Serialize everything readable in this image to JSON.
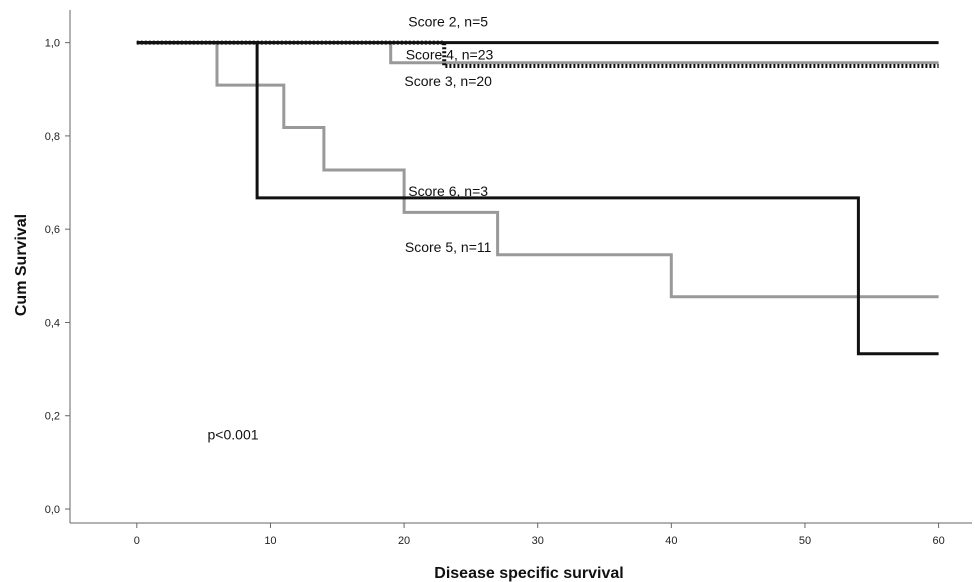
{
  "chart_data": {
    "type": "line",
    "subtype": "step",
    "title": "",
    "xlabel": "Disease specific survival",
    "ylabel": "Cum Survival",
    "xlim": [
      -5,
      62.5
    ],
    "ylim": [
      -0.03,
      1.07
    ],
    "xticks": [
      0,
      10,
      20,
      30,
      40,
      50,
      60
    ],
    "yticks": [
      0.0,
      0.2,
      0.4,
      0.6,
      0.8,
      1.0
    ],
    "xtick_labels": [
      "0",
      "10",
      "20",
      "30",
      "40",
      "50",
      "60"
    ],
    "ytick_labels": [
      "0,0",
      "0,2",
      "0,4",
      "0,6",
      "0,8",
      "1,0"
    ],
    "grid": false,
    "legend": "none",
    "series": [
      {
        "name": "Score 2, n=5",
        "color": "#111111",
        "dash": "solid",
        "x": [
          0,
          60
        ],
        "y": [
          1.0,
          1.0
        ]
      },
      {
        "name": "Score 3, n=20",
        "color": "#111111",
        "dash": "dotted",
        "x": [
          0,
          23,
          23,
          60
        ],
        "y": [
          1.0,
          1.0,
          0.95,
          0.95
        ]
      },
      {
        "name": "Score 4, n=23",
        "color": "#999999",
        "dash": "solid",
        "x": [
          0,
          19,
          19,
          60
        ],
        "y": [
          1.0,
          1.0,
          0.957,
          0.957
        ]
      },
      {
        "name": "Score 5, n=11",
        "color": "#999999",
        "dash": "solid",
        "x": [
          0,
          6,
          6,
          11,
          11,
          14,
          14,
          20,
          20,
          27,
          27,
          40,
          40,
          60
        ],
        "y": [
          1.0,
          1.0,
          0.909,
          0.909,
          0.818,
          0.818,
          0.727,
          0.727,
          0.636,
          0.636,
          0.545,
          0.545,
          0.455,
          0.455
        ]
      },
      {
        "name": "Score 6, n=3",
        "color": "#111111",
        "dash": "solid",
        "x": [
          0,
          9,
          9,
          54,
          54,
          60
        ],
        "y": [
          1.0,
          1.0,
          0.667,
          0.667,
          0.333,
          0.333
        ]
      }
    ],
    "curve_labels": [
      {
        "text": "Score 2, n=5",
        "x": 23.3,
        "y": 1.045
      },
      {
        "text": "Score 4, n=23",
        "x": 23.4,
        "y": 0.975
      },
      {
        "text": "Score 3, n=20",
        "x": 23.3,
        "y": 0.918
      },
      {
        "text": "Score 6, n=3",
        "x": 23.3,
        "y": 0.682
      },
      {
        "text": "Score 5, n=11",
        "x": 23.3,
        "y": 0.562
      }
    ],
    "annotations": [
      {
        "text": "p<0.001",
        "x": 7.2,
        "y": 0.16
      }
    ]
  }
}
